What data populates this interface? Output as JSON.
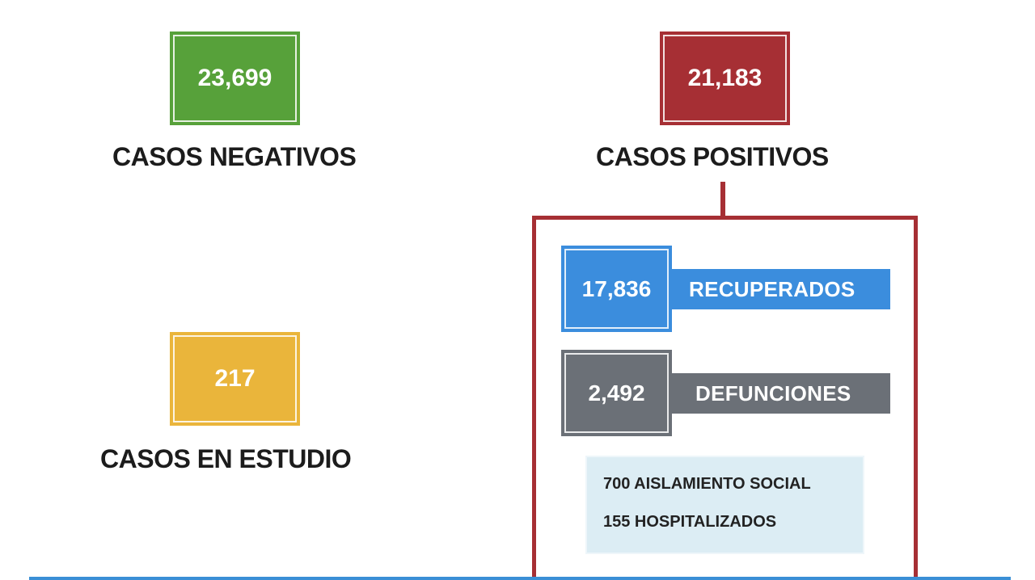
{
  "colors": {
    "negative": "#57a13a",
    "positive": "#a62f34",
    "study": "#eab53b",
    "recovered": "#3b8ddd",
    "deaths": "#6b7077",
    "details_bg": "#dcedf4"
  },
  "negativos": {
    "value": "23,699",
    "label": "CASOS NEGATIVOS"
  },
  "positivos": {
    "value": "21,183",
    "label": "CASOS POSITIVOS"
  },
  "estudio": {
    "value": "217",
    "label": "CASOS EN ESTUDIO"
  },
  "recuperados": {
    "value": "17,836",
    "label": "RECUPERADOS"
  },
  "defunciones": {
    "value": "2,492",
    "label": "DEFUNCIONES"
  },
  "detalles": [
    {
      "text": "700  AISLAMIENTO SOCIAL"
    },
    {
      "text": "155  HOSPITALIZADOS"
    }
  ]
}
